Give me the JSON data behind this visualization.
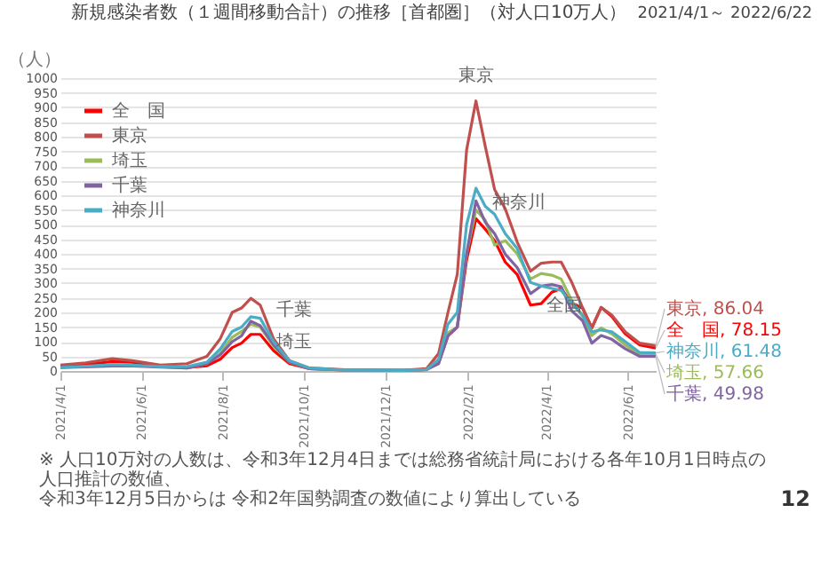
{
  "chart_data": {
    "type": "line",
    "title": "新規感染者数（１週間移動合計）の推移［首都圏］（対人口10万人）",
    "subtitle": "2021/4/1～ 2022/6/22",
    "ylabel": "（人）",
    "x": [
      "2021-04-01",
      "2021-04-20",
      "2021-05-10",
      "2021-05-25",
      "2021-06-15",
      "2021-07-05",
      "2021-07-20",
      "2021-07-30",
      "2021-08-08",
      "2021-08-15",
      "2021-08-22",
      "2021-08-29",
      "2021-09-08",
      "2021-09-20",
      "2021-10-05",
      "2021-11-01",
      "2021-12-15",
      "2022-01-01",
      "2022-01-10",
      "2022-01-17",
      "2022-01-24",
      "2022-01-31",
      "2022-02-07",
      "2022-02-14",
      "2022-02-21",
      "2022-03-01",
      "2022-03-10",
      "2022-03-20",
      "2022-03-28",
      "2022-04-05",
      "2022-04-12",
      "2022-04-20",
      "2022-04-28",
      "2022-05-05",
      "2022-05-12",
      "2022-05-20",
      "2022-05-30",
      "2022-06-10",
      "2022-06-22"
    ],
    "series": [
      {
        "name": "全　国",
        "color": "#ff0000",
        "values": [
          15,
          22,
          32,
          30,
          18,
          12,
          18,
          40,
          80,
          95,
          125,
          125,
          70,
          25,
          8,
          3,
          2,
          5,
          30,
          120,
          150,
          380,
          520,
          484,
          445,
          372,
          329,
          225,
          230,
          269,
          282,
          230,
          215,
          147,
          217,
          186,
          127,
          89,
          78.15
        ],
        "value_labels": [
          null,
          null,
          null,
          null,
          null,
          null,
          null,
          null,
          null,
          null,
          null,
          null,
          null,
          null,
          null,
          null,
          null,
          null,
          null,
          null,
          null,
          null,
          null,
          null,
          null,
          null,
          null,
          null,
          null,
          null,
          null,
          null,
          null,
          null,
          null,
          null,
          null,
          null,
          "全　国, 78.15"
        ]
      },
      {
        "name": "東京",
        "color": "#c0504d",
        "values": [
          20,
          28,
          42,
          35,
          20,
          25,
          50,
          110,
          200,
          215,
          248,
          225,
          110,
          35,
          10,
          4,
          3,
          8,
          60,
          200,
          330,
          755,
          922,
          767,
          620,
          554,
          440,
          341,
          368,
          372,
          372,
          302,
          217,
          147,
          217,
          191,
          134,
          95,
          86.04
        ],
        "value_labels": [
          null,
          null,
          null,
          null,
          null,
          null,
          null,
          null,
          null,
          null,
          null,
          null,
          null,
          null,
          null,
          null,
          null,
          null,
          null,
          null,
          null,
          null,
          null,
          null,
          null,
          null,
          null,
          null,
          null,
          null,
          null,
          null,
          null,
          null,
          null,
          null,
          null,
          null,
          "東京, 86.04"
        ]
      },
      {
        "name": "埼玉",
        "color": "#9bbb59",
        "values": [
          null,
          null,
          null,
          null,
          15,
          10,
          25,
          60,
          115,
          135,
          160,
          150,
          85,
          30,
          8,
          3,
          2,
          5,
          30,
          130,
          150,
          400,
          550,
          515,
          430,
          445,
          400,
          314,
          333,
          327,
          314,
          240,
          186,
          121,
          147,
          127,
          89,
          57,
          57.66
        ],
        "value_labels": [
          null,
          null,
          null,
          null,
          null,
          null,
          null,
          null,
          null,
          null,
          null,
          null,
          null,
          null,
          null,
          null,
          null,
          null,
          null,
          null,
          null,
          null,
          null,
          null,
          null,
          null,
          null,
          null,
          null,
          null,
          null,
          null,
          null,
          null,
          null,
          null,
          null,
          null,
          "埼玉, 57.66"
        ]
      },
      {
        "name": "千葉",
        "color": "#8064a2",
        "values": [
          12,
          14,
          17,
          17,
          13,
          10,
          25,
          55,
          100,
          120,
          170,
          155,
          90,
          30,
          8,
          3,
          2,
          5,
          25,
          120,
          150,
          400,
          581,
          508,
          469,
          399,
          353,
          264,
          290,
          295,
          288,
          205,
          172,
          95,
          121,
          108,
          76,
          50,
          49.98
        ],
        "value_labels": [
          null,
          null,
          null,
          null,
          null,
          null,
          null,
          null,
          null,
          null,
          null,
          null,
          null,
          null,
          null,
          null,
          null,
          null,
          null,
          null,
          null,
          null,
          null,
          null,
          null,
          null,
          null,
          null,
          null,
          null,
          null,
          null,
          null,
          null,
          null,
          null,
          null,
          null,
          "千葉, 49.98"
        ]
      },
      {
        "name": "神奈川",
        "color": "#4bacc6",
        "values": [
          12,
          16,
          22,
          20,
          15,
          15,
          30,
          75,
          135,
          150,
          185,
          180,
          100,
          35,
          10,
          3,
          2,
          5,
          40,
          160,
          200,
          500,
          624,
          562,
          535,
          469,
          418,
          302,
          290,
          282,
          275,
          230,
          192,
          134,
          140,
          134,
          101,
          63,
          61.48
        ],
        "value_labels": [
          null,
          null,
          null,
          null,
          null,
          null,
          null,
          null,
          null,
          null,
          null,
          null,
          null,
          null,
          null,
          null,
          null,
          null,
          null,
          null,
          null,
          null,
          null,
          null,
          null,
          null,
          null,
          null,
          null,
          null,
          null,
          null,
          null,
          null,
          null,
          null,
          null,
          null,
          "神奈川, 61.48"
        ]
      }
    ],
    "xlim": [
      "2021-04-01",
      "2022-06-22"
    ],
    "xticks": [
      {
        "value": "2021-04-01",
        "label": "2021/4/1"
      },
      {
        "value": "2021-06-01",
        "label": "2021/6/1"
      },
      {
        "value": "2021-08-01",
        "label": "2021/8/1"
      },
      {
        "value": "2021-10-01",
        "label": "2021/10/1"
      },
      {
        "value": "2021-12-01",
        "label": "2021/12/1"
      },
      {
        "value": "2022-02-01",
        "label": "2022/2/1"
      },
      {
        "value": "2022-04-01",
        "label": "2022/4/1"
      },
      {
        "value": "2022-06-01",
        "label": "2022/6/1"
      }
    ],
    "ylim": [
      0,
      1000
    ],
    "yticks": [
      0,
      50,
      100,
      150,
      200,
      250,
      300,
      350,
      400,
      450,
      500,
      550,
      600,
      650,
      700,
      750,
      800,
      850,
      900,
      950,
      {
        "value": 1000,
        "label": "1000"
      }
    ],
    "grid": "y",
    "legend": "top left",
    "annotations": [
      {
        "text": "東京",
        "x": "2022-02-07",
        "y": 950
      },
      {
        "text": "神奈川",
        "x": "2022-02-07",
        "y": 624
      },
      {
        "text": "全国",
        "x": "2022-03-20",
        "y": 225
      },
      {
        "text": "千葉",
        "x": "2021-08-29",
        "y": 155
      },
      {
        "text": "埼玉",
        "x": "2021-08-29",
        "y": 150
      },
      "※ 人口10万対の人数は、令和3年12月4日までは総務省統計局における各年10月1日時点の人口推計の数値、",
      "令和3年12月5日からは 令和2年国勢調査の数値により算出している",
      "12"
    ]
  }
}
